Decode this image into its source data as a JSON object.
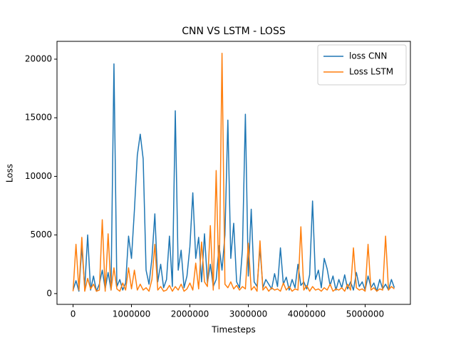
{
  "chart_data": {
    "type": "line",
    "title": "CNN VS LSTM - LOSS",
    "x_label": "Timesteps",
    "y_label": "Loss",
    "x": [
      0,
      50000,
      100000,
      150000,
      200000,
      250000,
      300000,
      350000,
      400000,
      450000,
      500000,
      550000,
      600000,
      650000,
      700000,
      750000,
      800000,
      850000,
      900000,
      950000,
      1000000,
      1050000,
      1100000,
      1150000,
      1200000,
      1250000,
      1300000,
      1350000,
      1400000,
      1450000,
      1500000,
      1550000,
      1600000,
      1650000,
      1700000,
      1750000,
      1800000,
      1850000,
      1900000,
      1950000,
      2000000,
      2050000,
      2100000,
      2150000,
      2200000,
      2250000,
      2300000,
      2350000,
      2400000,
      2450000,
      2500000,
      2550000,
      2600000,
      2650000,
      2700000,
      2750000,
      2800000,
      2850000,
      2900000,
      2950000,
      3000000,
      3050000,
      3100000,
      3150000,
      3200000,
      3250000,
      3300000,
      3350000,
      3400000,
      3450000,
      3500000,
      3550000,
      3600000,
      3650000,
      3700000,
      3750000,
      3800000,
      3850000,
      3900000,
      3950000,
      4000000,
      4050000,
      4100000,
      4150000,
      4200000,
      4250000,
      4300000,
      4350000,
      4400000,
      4450000,
      4500000,
      4550000,
      4600000,
      4650000,
      4700000,
      4750000,
      4800000,
      4850000,
      4900000,
      4950000,
      5000000,
      5050000,
      5100000,
      5150000,
      5200000,
      5250000,
      5300000,
      5350000,
      5400000,
      5450000,
      5500000
    ],
    "series": [
      {
        "name": "loss CNN",
        "color": "#1f77b4",
        "values": [
          300,
          1100,
          200,
          4000,
          500,
          5000,
          300,
          1500,
          200,
          800,
          2000,
          400,
          1800,
          300,
          19600,
          600,
          1200,
          300,
          900,
          4900,
          3000,
          7100,
          11800,
          13600,
          11500,
          2000,
          800,
          3000,
          6800,
          1000,
          2500,
          500,
          1200,
          4900,
          600,
          15600,
          2000,
          3700,
          500,
          1500,
          4000,
          8600,
          3000,
          4800,
          1000,
          5100,
          900,
          2500,
          600,
          1200,
          4100,
          2000,
          5000,
          14800,
          3000,
          6000,
          1000,
          500,
          3800,
          15300,
          1500,
          7200,
          1000,
          600,
          3900,
          500,
          1200,
          800,
          400,
          1700,
          600,
          3900,
          800,
          1400,
          300,
          1200,
          500,
          2500,
          700,
          1000,
          400,
          1600,
          7900,
          1200,
          2000,
          500,
          3000,
          2100,
          700,
          1500,
          300,
          1200,
          500,
          1600,
          400,
          1000,
          300,
          1800,
          600,
          1000,
          300,
          1500,
          500,
          900,
          200,
          1200,
          400,
          800,
          300,
          1200,
          500
        ]
      },
      {
        "name": "Loss LSTM",
        "color": "#ff7f0e",
        "values": [
          200,
          4200,
          300,
          4800,
          200,
          1300,
          400,
          800,
          200,
          300,
          6300,
          200,
          5100,
          300,
          2200,
          400,
          200,
          900,
          300,
          2200,
          400,
          2000,
          300,
          800,
          300,
          500,
          200,
          1200,
          4200,
          300,
          600,
          200,
          300,
          700,
          200,
          600,
          300,
          800,
          200,
          400,
          900,
          300,
          2600,
          400,
          4400,
          1000,
          600,
          5800,
          300,
          10500,
          400,
          20500,
          800,
          500,
          1000,
          400,
          700,
          300,
          600,
          400,
          4300,
          300,
          600,
          200,
          4500,
          300,
          600,
          200,
          500,
          300,
          400,
          200,
          900,
          300,
          600,
          200,
          400,
          300,
          5700,
          300,
          700,
          200,
          600,
          300,
          400,
          200,
          500,
          300,
          800,
          200,
          400,
          300,
          500,
          200,
          800,
          300,
          3900,
          500,
          300,
          400,
          200,
          4200,
          300,
          500,
          200,
          400,
          300,
          4900,
          300,
          600,
          400
        ]
      }
    ],
    "xlim": [
      -275000,
      5775000
    ],
    "ylim": [
      -920,
      21520
    ],
    "xticks": [
      0,
      1000000,
      2000000,
      3000000,
      4000000,
      5000000
    ],
    "yticks": [
      0,
      5000,
      10000,
      15000,
      20000
    ],
    "legend": "upper right"
  }
}
